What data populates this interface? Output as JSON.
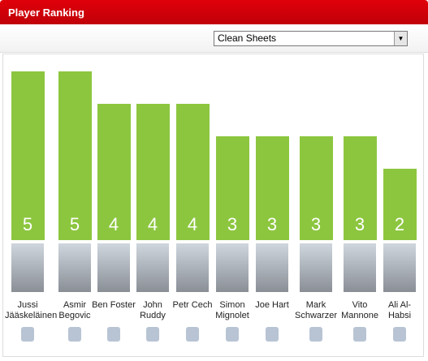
{
  "header": {
    "title": "Player Ranking"
  },
  "dropdown": {
    "selected": "Clean Sheets"
  },
  "chart_data": {
    "type": "bar",
    "categories": [
      "Jussi Jääskeläinen",
      "Asmir Begovic",
      "Ben Foster",
      "John Ruddy",
      "Petr Cech",
      "Simon Mignolet",
      "Joe Hart",
      "Mark Schwarzer",
      "Vito Mannone",
      "Ali Al-Habsi"
    ],
    "values": [
      5,
      5,
      4,
      4,
      4,
      3,
      3,
      3,
      3,
      2
    ],
    "color": "#8cc63f"
  }
}
